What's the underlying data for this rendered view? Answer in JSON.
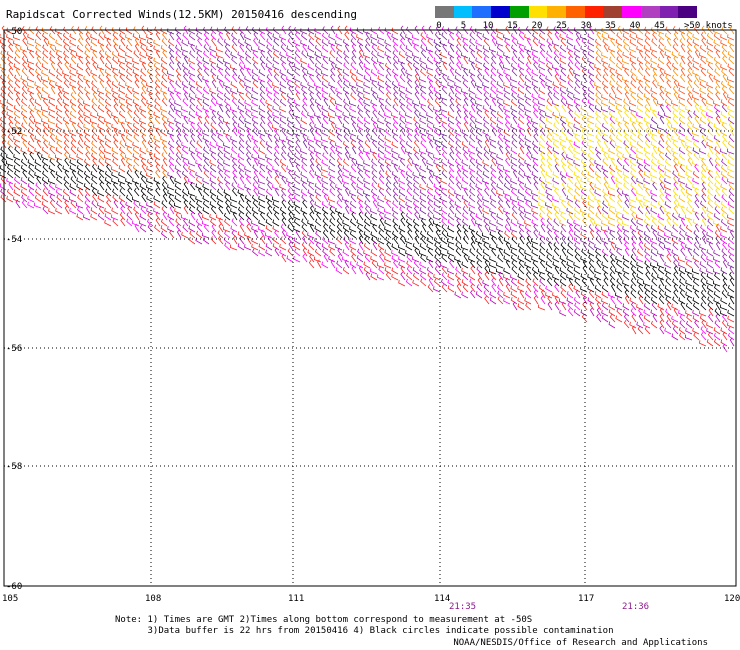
{
  "title": "Rapidscat Corrected Winds(12.5KM) 20150416 descending",
  "legend": {
    "colors": [
      "#777777",
      "#00bfff",
      "#1e6fff",
      "#0000cd",
      "#00a000",
      "#ffe000",
      "#ffb000",
      "#ff6000",
      "#ff2000",
      "#a04030",
      "#ff00ff",
      "#b040c0",
      "#8020b0",
      "#4b0082"
    ],
    "tick_labels": [
      "0",
      "5",
      "10",
      "15",
      "20",
      "25",
      "30",
      "35",
      "40",
      "45",
      ">50 knots"
    ]
  },
  "map": {
    "lat_labels": [
      "-50",
      "-52",
      "-54",
      "-56",
      "-58",
      "-60"
    ],
    "lon_labels": [
      "105",
      "108",
      "111",
      "114",
      "117",
      "120"
    ],
    "time_labels": [
      "21:35",
      "21:36"
    ]
  },
  "notes": {
    "line1": "Note: 1) Times are GMT 2)Times along bottom correspond to measurement at -50S",
    "line2": "      3)Data buffer is 22 hrs from 20150416 4) Black circles indicate possible contamination"
  },
  "credit": "NOAA/NESDIS/Office of Research and Applications",
  "chart_data": {
    "type": "map",
    "lat_range": [
      -60,
      -50
    ],
    "lon_range": [
      105,
      120
    ],
    "grid": "dotted",
    "speed_unit": "knots",
    "legend_min": 0,
    "legend_max": 50
  }
}
